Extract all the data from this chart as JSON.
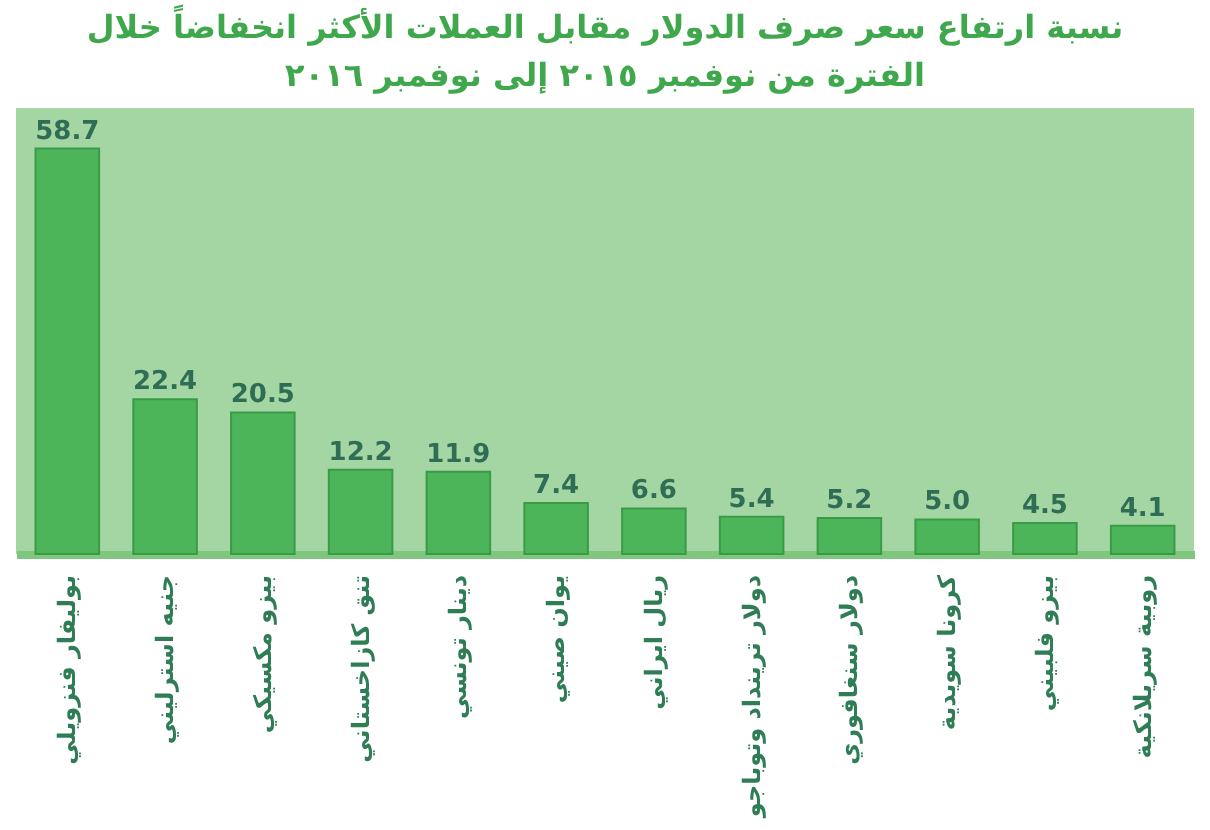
{
  "chart_data": {
    "type": "bar",
    "title": "نسبة ارتفاع سعر صرف الدولار مقابل العملات الأكثر انخفاضاً خلال الفترة من نوفمبر ٢٠١٥ إلى نوفمبر ٢٠١٦",
    "categories": [
      "بوليفار فنزويلي",
      "جنيه استرليني",
      "بيزو مكسيكي",
      "تنق كازاخستاني",
      "دينار تونسي",
      "يوان صيني",
      "ريال ايراني",
      "دولار ترينداد وتوباجو",
      "دولار سنغافوري",
      "كرونا سويدية",
      "بيزو فلبيني",
      "روبية سريلانكية"
    ],
    "values": [
      58.7,
      22.4,
      20.5,
      12.2,
      11.9,
      7.4,
      6.6,
      5.4,
      5.2,
      5.0,
      4.5,
      4.1
    ],
    "value_labels": [
      "58.7",
      "22.4",
      "20.5",
      "12.2",
      "11.9",
      "7.4",
      "6.6",
      "5.4",
      "5.2",
      "5.0",
      "4.5",
      "4.1"
    ],
    "color": "#4cb55a"
  }
}
